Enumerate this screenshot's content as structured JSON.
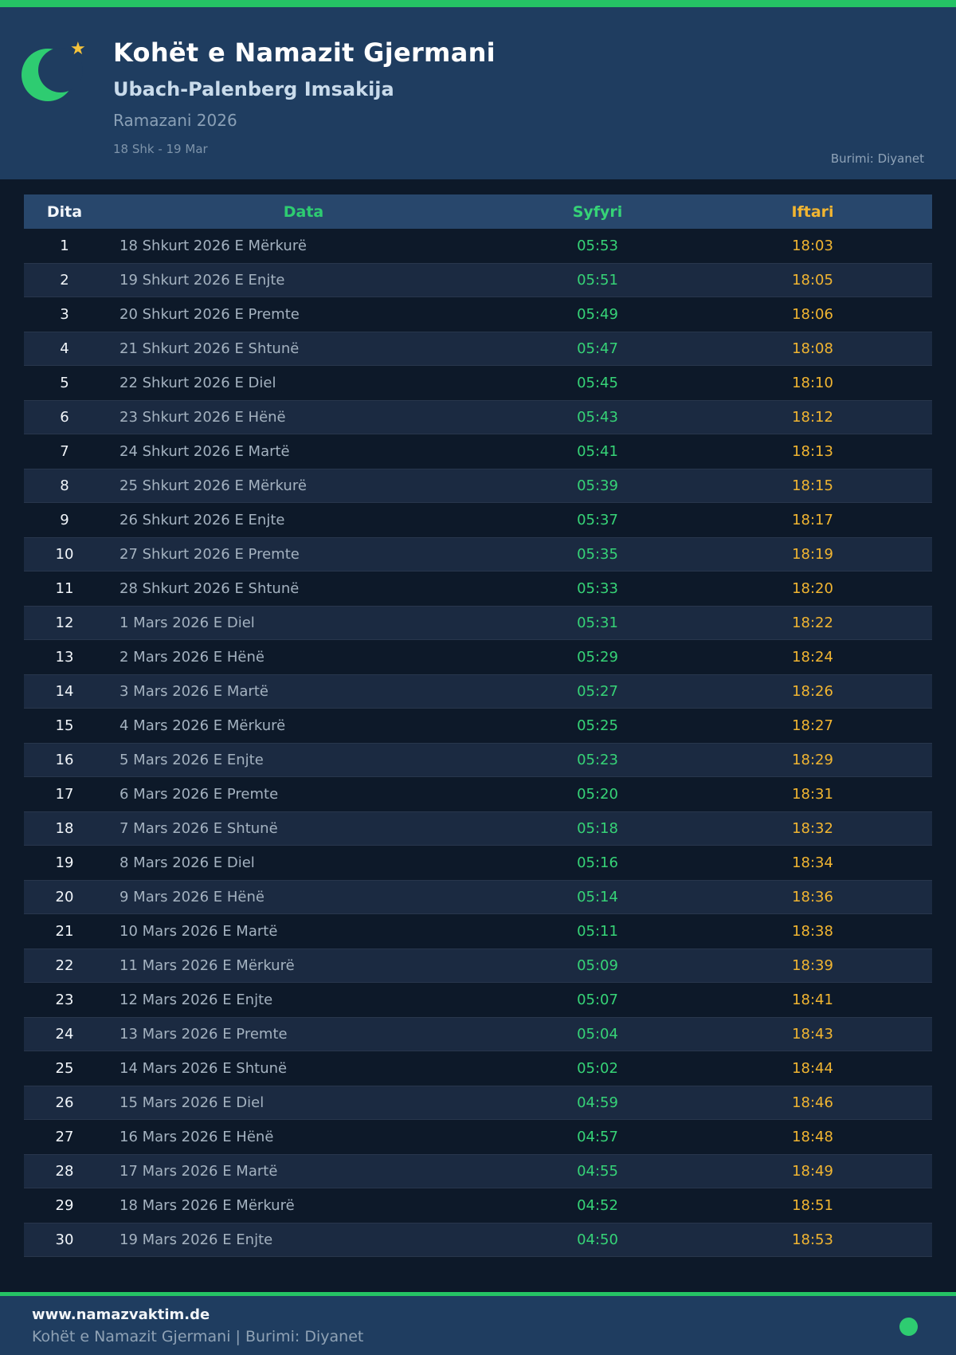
{
  "header": {
    "title": "Kohët e Namazit Gjermani",
    "subtitle": "Ubach-Palenberg Imsakija",
    "season": "Ramazani 2026",
    "date_range": "18 Shk - 19 Mar",
    "source": "Burimi: Diyanet"
  },
  "table": {
    "columns": {
      "day": "Dita",
      "date": "Data",
      "syfyri": "Syfyri",
      "iftari": "Iftari"
    },
    "rows": [
      {
        "day": "1",
        "date": "18 Shkurt 2026 E Mërkurë",
        "syfyri": "05:53",
        "iftari": "18:03"
      },
      {
        "day": "2",
        "date": "19 Shkurt 2026 E Enjte",
        "syfyri": "05:51",
        "iftari": "18:05"
      },
      {
        "day": "3",
        "date": "20 Shkurt 2026 E Premte",
        "syfyri": "05:49",
        "iftari": "18:06"
      },
      {
        "day": "4",
        "date": "21 Shkurt 2026 E Shtunë",
        "syfyri": "05:47",
        "iftari": "18:08"
      },
      {
        "day": "5",
        "date": "22 Shkurt 2026 E Diel",
        "syfyri": "05:45",
        "iftari": "18:10"
      },
      {
        "day": "6",
        "date": "23 Shkurt 2026 E Hënë",
        "syfyri": "05:43",
        "iftari": "18:12"
      },
      {
        "day": "7",
        "date": "24 Shkurt 2026 E Martë",
        "syfyri": "05:41",
        "iftari": "18:13"
      },
      {
        "day": "8",
        "date": "25 Shkurt 2026 E Mërkurë",
        "syfyri": "05:39",
        "iftari": "18:15"
      },
      {
        "day": "9",
        "date": "26 Shkurt 2026 E Enjte",
        "syfyri": "05:37",
        "iftari": "18:17"
      },
      {
        "day": "10",
        "date": "27 Shkurt 2026 E Premte",
        "syfyri": "05:35",
        "iftari": "18:19"
      },
      {
        "day": "11",
        "date": "28 Shkurt 2026 E Shtunë",
        "syfyri": "05:33",
        "iftari": "18:20"
      },
      {
        "day": "12",
        "date": "1 Mars 2026 E Diel",
        "syfyri": "05:31",
        "iftari": "18:22"
      },
      {
        "day": "13",
        "date": "2 Mars 2026 E Hënë",
        "syfyri": "05:29",
        "iftari": "18:24"
      },
      {
        "day": "14",
        "date": "3 Mars 2026 E Martë",
        "syfyri": "05:27",
        "iftari": "18:26"
      },
      {
        "day": "15",
        "date": "4 Mars 2026 E Mërkurë",
        "syfyri": "05:25",
        "iftari": "18:27"
      },
      {
        "day": "16",
        "date": "5 Mars 2026 E Enjte",
        "syfyri": "05:23",
        "iftari": "18:29"
      },
      {
        "day": "17",
        "date": "6 Mars 2026 E Premte",
        "syfyri": "05:20",
        "iftari": "18:31"
      },
      {
        "day": "18",
        "date": "7 Mars 2026 E Shtunë",
        "syfyri": "05:18",
        "iftari": "18:32"
      },
      {
        "day": "19",
        "date": "8 Mars 2026 E Diel",
        "syfyri": "05:16",
        "iftari": "18:34"
      },
      {
        "day": "20",
        "date": "9 Mars 2026 E Hënë",
        "syfyri": "05:14",
        "iftari": "18:36"
      },
      {
        "day": "21",
        "date": "10 Mars 2026 E Martë",
        "syfyri": "05:11",
        "iftari": "18:38"
      },
      {
        "day": "22",
        "date": "11 Mars 2026 E Mërkurë",
        "syfyri": "05:09",
        "iftari": "18:39"
      },
      {
        "day": "23",
        "date": "12 Mars 2026 E Enjte",
        "syfyri": "05:07",
        "iftari": "18:41"
      },
      {
        "day": "24",
        "date": "13 Mars 2026 E Premte",
        "syfyri": "05:04",
        "iftari": "18:43"
      },
      {
        "day": "25",
        "date": "14 Mars 2026 E Shtunë",
        "syfyri": "05:02",
        "iftari": "18:44"
      },
      {
        "day": "26",
        "date": "15 Mars 2026 E Diel",
        "syfyri": "04:59",
        "iftari": "18:46"
      },
      {
        "day": "27",
        "date": "16 Mars 2026 E Hënë",
        "syfyri": "04:57",
        "iftari": "18:48"
      },
      {
        "day": "28",
        "date": "17 Mars 2026 E Martë",
        "syfyri": "04:55",
        "iftari": "18:49"
      },
      {
        "day": "29",
        "date": "18 Mars 2026 E Mërkurë",
        "syfyri": "04:52",
        "iftari": "18:51"
      },
      {
        "day": "30",
        "date": "19 Mars 2026 E Enjte",
        "syfyri": "04:50",
        "iftari": "18:53"
      }
    ]
  },
  "footer": {
    "website": "www.namazvaktim.de",
    "tagline": "Kohët e Namazit Gjermani | Burimi: Diyanet"
  },
  "icons": {
    "moon": "crescent-moon-icon",
    "star": "star-icon",
    "dot": "status-dot-icon",
    "star_glyph": "★"
  },
  "colors": {
    "accent_green": "#2ecc71",
    "top_bar_green": "#25c365",
    "iftari_gold": "#f1b531",
    "star_gold": "#f5c33b",
    "header_navy": "#1f3d60",
    "body_dark": "#0d1929",
    "row_alt": "#1b2a41",
    "table_head_navy": "#28476c"
  }
}
